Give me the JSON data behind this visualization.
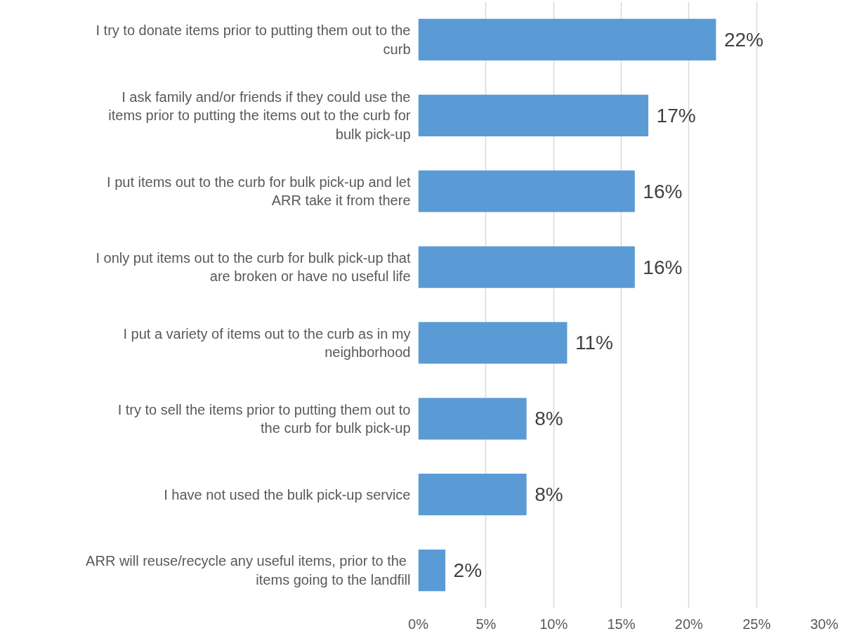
{
  "chart_data": {
    "type": "bar",
    "orientation": "horizontal",
    "categories": [
      "I try to donate items prior to putting them out to the curb",
      "I ask family and/or friends if they could use the items prior to putting the items out to the curb for bulk pick-up",
      "I put items out to the curb for bulk pick-up and let ARR take it from there",
      "I only put items out to the curb for bulk pick-up that are broken or have no useful life",
      "I put a variety of items out to the curb as in my neighborhood",
      "I try to sell the items prior to putting them out to the curb for bulk pick-up",
      "I have not used the bulk pick-up service",
      "ARR will reuse/recycle any useful items,  prior to the items going to the landfill"
    ],
    "values": [
      22,
      17,
      16,
      16,
      11,
      8,
      8,
      2
    ],
    "value_labels": [
      "22%",
      "17%",
      "16%",
      "16%",
      "11%",
      "8%",
      "8%",
      "2%"
    ],
    "color": "#5b9bd5",
    "xlim": [
      0,
      30
    ],
    "xticks": [
      {
        "value": 0,
        "label": "0%"
      },
      {
        "value": 5,
        "label": "5%"
      },
      {
        "value": 10,
        "label": "10%"
      },
      {
        "value": 15,
        "label": "15%"
      },
      {
        "value": 20,
        "label": "20%"
      },
      {
        "value": 25,
        "label": "25%"
      },
      {
        "value": 30,
        "label": "30%"
      }
    ],
    "grid": "x"
  }
}
